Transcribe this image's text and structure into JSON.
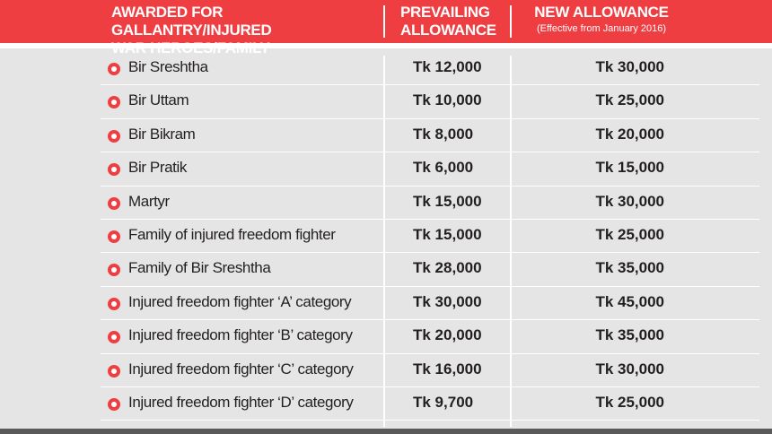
{
  "header": {
    "col1_line1": "AWARDED FOR GALLANTRY/INJURED",
    "col1_line2": "WAR HEROES/FAMILY",
    "col2_line1": "PREVAILING",
    "col2_line2": "ALLOWANCE",
    "col3_line1": "NEW ALLOWANCE",
    "col3_sub": "(Effective from January 2016)"
  },
  "colors": {
    "accent": "#ef3e42",
    "background": "#e5e5e5",
    "text": "#231f20"
  },
  "rows": [
    {
      "label": "Bir Sreshtha",
      "prevailing": "Tk 12,000",
      "new": "Tk 30,000"
    },
    {
      "label": "Bir Uttam",
      "prevailing": "Tk 10,000",
      "new": "Tk 25,000"
    },
    {
      "label": "Bir Bikram",
      "prevailing": "Tk 8,000",
      "new": "Tk 20,000"
    },
    {
      "label": "Bir Pratik",
      "prevailing": "Tk 6,000",
      "new": "Tk 15,000"
    },
    {
      "label": "Martyr",
      "prevailing": "Tk 15,000",
      "new": "Tk 30,000"
    },
    {
      "label": "Family of injured freedom fighter",
      "prevailing": "Tk 15,000",
      "new": "Tk 25,000"
    },
    {
      "label": "Family of Bir Sreshtha",
      "prevailing": "Tk 28,000",
      "new": "Tk 35,000"
    },
    {
      "label": "Injured freedom fighter ‘A’ category",
      "prevailing": "Tk 30,000",
      "new": "Tk 45,000"
    },
    {
      "label": "Injured  freedom fighter ‘B’ category",
      "prevailing": "Tk 20,000",
      "new": "Tk 35,000"
    },
    {
      "label": "Injured  freedom fighter ‘C’ category",
      "prevailing": "Tk 16,000",
      "new": "Tk 30,000"
    },
    {
      "label": "Injured  freedom fighter ‘D’ category",
      "prevailing": "Tk 9,700",
      "new": "Tk 25,000"
    }
  ]
}
